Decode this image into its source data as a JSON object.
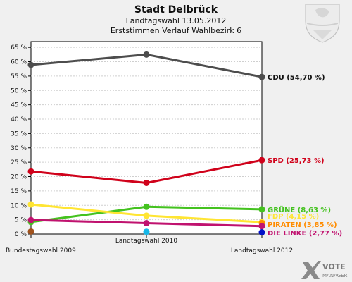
{
  "header": {
    "title": "Stadt Delbrück",
    "subtitle1": "Landtagswahl 13.05.2012",
    "subtitle2": "Erststimmen Verlauf Wahlbezirk 6"
  },
  "branding": {
    "logo_line1": "VOTE",
    "logo_line2": "MANAGER",
    "logo_icon": "x-check-icon",
    "crest_icon": "coat-of-arms-icon"
  },
  "chart_data": {
    "type": "line",
    "title": "Stadt Delbrück",
    "xlabel": "",
    "ylabel": "",
    "ylim": [
      0,
      67
    ],
    "ytick_values": [
      0,
      5,
      10,
      15,
      20,
      25,
      30,
      35,
      40,
      45,
      50,
      55,
      60,
      65
    ],
    "ytick_labels": [
      "0 %",
      "5 %",
      "10 %",
      "15 %",
      "20 %",
      "25 %",
      "30 %",
      "35 %",
      "40 %",
      "45 %",
      "50 %",
      "55 %",
      "60 %",
      "65 %"
    ],
    "grid": true,
    "categories": [
      "Bundestagswahl 2009",
      "Landtagswahl 2010",
      "Landtagswahl 2012"
    ],
    "series": [
      {
        "name": "CDU",
        "color": "#4d4d4d",
        "values": [
          58.9,
          62.5,
          54.7
        ],
        "label": "CDU (54,70 %)"
      },
      {
        "name": "SPD",
        "color": "#d0021b",
        "values": [
          21.8,
          17.8,
          25.73
        ],
        "label": "SPD (25,73 %)"
      },
      {
        "name": "GRÜNE",
        "color": "#44c21f",
        "values": [
          4.2,
          9.5,
          8.63
        ],
        "label": "GRÜNE (8,63 %)"
      },
      {
        "name": "FDP",
        "color": "#ffe533",
        "values": [
          10.3,
          6.4,
          4.15
        ],
        "label": "FDP (4,15 %)"
      },
      {
        "name": "PIRATEN",
        "color": "#ff8c00",
        "values": [
          null,
          null,
          3.85
        ],
        "label": "PIRATEN (3,85 %)"
      },
      {
        "name": "DIE LINKE",
        "color": "#c0126f",
        "values": [
          4.9,
          3.8,
          2.77
        ],
        "label": "DIE LINKE (2,77 %)"
      },
      {
        "name": "Sonstige-1",
        "color": "#a0521d",
        "values": [
          0.9,
          null,
          null
        ],
        "label": ""
      },
      {
        "name": "Sonstige-2",
        "color": "#16b7e8",
        "values": [
          null,
          0.8,
          null
        ],
        "label": ""
      },
      {
        "name": "Sonstige-3",
        "color": "#0010c8",
        "values": [
          null,
          null,
          0.6
        ],
        "label": ""
      }
    ]
  }
}
